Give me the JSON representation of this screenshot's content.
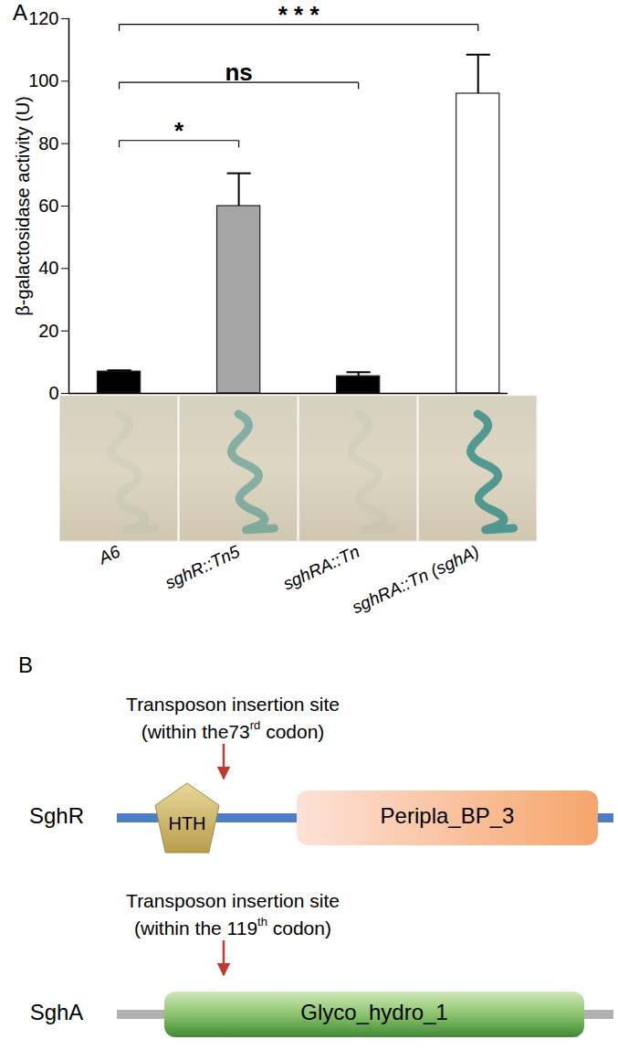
{
  "panel_labels": [
    "A",
    "B"
  ],
  "chart_data": {
    "type": "bar",
    "y_label": "β-galactosidase activity (U)",
    "categories": [
      "A6",
      "sghR::Tn5",
      "sghRA::Tn",
      "sghRA::Tn (sghA)"
    ],
    "values": [
      7,
      60,
      5.5,
      96
    ],
    "errors": [
      0.4,
      10.5,
      1.3,
      12.5
    ],
    "colors": [
      "#000000",
      "#a6a6a6",
      "#000000",
      "#ffffff"
    ],
    "ylim": [
      0,
      120
    ],
    "yticks": [
      0,
      20,
      40,
      60,
      80,
      100,
      120
    ],
    "comparisons": [
      {
        "from": "A6",
        "to": "sghR::Tn5",
        "label": "*"
      },
      {
        "from": "A6",
        "to": "sghRA::Tn",
        "label": "ns"
      },
      {
        "from": "A6",
        "to": "sghRA::Tn (sghA)",
        "label": "* * *"
      }
    ]
  },
  "diagram": {
    "proteins": [
      {
        "name": "SghR",
        "domains": [
          "HTH",
          "Peripla_BP_3"
        ],
        "insertion": {
          "text": "Transposon insertion site",
          "note_before": "(within the73",
          "note_superscript": "rd",
          "note_after": " codon)"
        }
      },
      {
        "name": "SghA",
        "domains": [
          "Glyco_hydro_1"
        ],
        "insertion": {
          "text": "Transposon insertion site",
          "note_before": "(within the 119",
          "note_superscript": "th",
          "note_after": " codon)"
        }
      }
    ]
  }
}
